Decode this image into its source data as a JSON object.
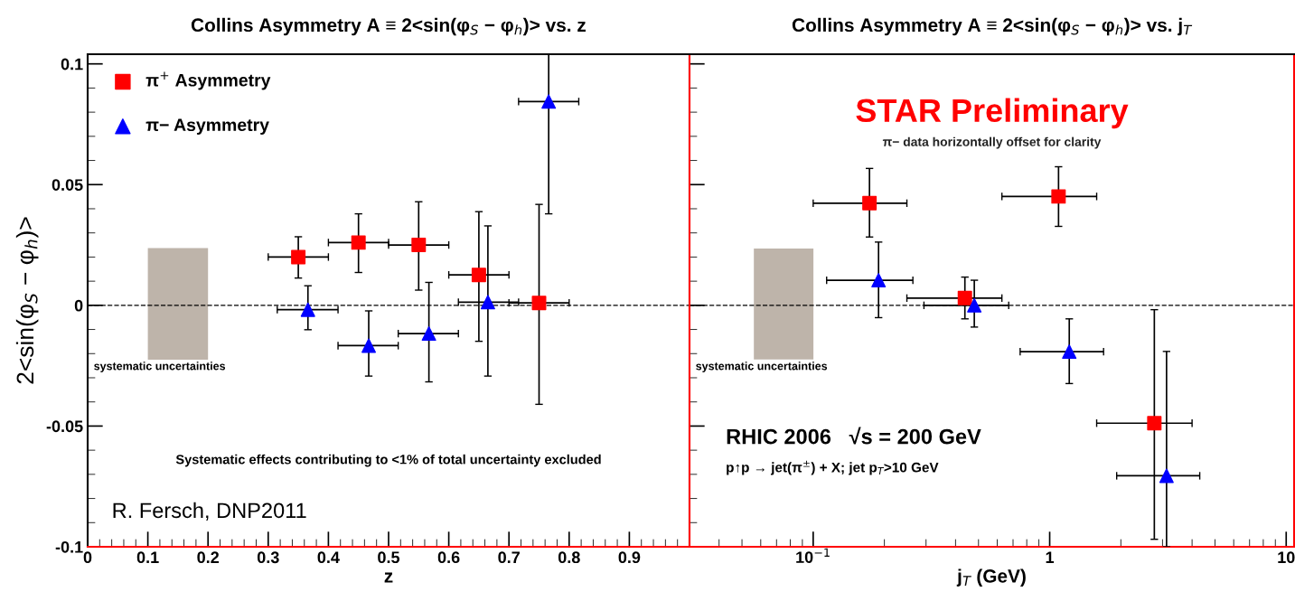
{
  "chart_data": [
    {
      "type": "scatter",
      "title": "Collins Asymmetry A ≡ 2<sin(φ$_{S}$ − φ$_{h}$)> vs. z",
      "xlabel": "z",
      "ylabel": "2<sin(φ$_{S}$ − φ$_{h}$)>",
      "xlim": [
        0,
        1
      ],
      "xticks": [
        0,
        0.1,
        0.2,
        0.3,
        0.4,
        0.5,
        0.6,
        0.7,
        0.8,
        0.9
      ],
      "ylim": [
        -0.1,
        0.104
      ],
      "yticks": [
        -0.1,
        -0.05,
        0,
        0.05,
        0.1
      ],
      "legend": "top left",
      "grid": false,
      "series": [
        {
          "type": "bar",
          "color": "#beb4aa",
          "x": [
            0.15
          ],
          "base": [
            -0.0225
          ],
          "values": [
            0.0462
          ]
        },
        {
          "name": "π$^{+}$ Asymmetry",
          "color": "#ff0000",
          "marker": "square",
          "x": [
            0.35,
            0.45,
            0.55,
            0.65,
            0.75
          ],
          "values": [
            0.02,
            0.026,
            0.025,
            0.0126,
            0.001
          ],
          "errors": [
            [
              0.0113,
              0.0284
            ],
            [
              0.0136,
              0.0379
            ],
            [
              0.0063,
              0.0429
            ],
            [
              -0.0149,
              0.0388
            ],
            [
              -0.041,
              0.0418
            ]
          ],
          "xerrors": [
            [
              0.3,
              0.4
            ],
            [
              0.4,
              0.5
            ],
            [
              0.5,
              0.6
            ],
            [
              0.6,
              0.7
            ],
            [
              0.7,
              0.8
            ]
          ]
        },
        {
          "name": "π− Asymmetry",
          "color": "#0000ff",
          "marker": "triangle",
          "x": [
            0.366,
            0.467,
            0.567,
            0.665,
            0.766
          ],
          "values": [
            -0.0018,
            -0.0167,
            -0.0117,
            0.0013,
            0.0844
          ],
          "errors": [
            [
              -0.0101,
              0.0081
            ],
            [
              -0.0293,
              -0.0023
            ],
            [
              -0.0317,
              0.0095
            ],
            [
              -0.0293,
              0.0329
            ],
            [
              0.0379,
              0.104
            ]
          ],
          "xerrors": [
            [
              0.315,
              0.416
            ],
            [
              0.416,
              0.516
            ],
            [
              0.516,
              0.616
            ],
            [
              0.616,
              0.716
            ],
            [
              0.716,
              0.816
            ]
          ]
        }
      ],
      "ref_lines": [
        {
          "axis": "y",
          "value": 0,
          "line_style": "dashed",
          "color": "#000000"
        }
      ],
      "annotations": [
        "systematic uncertainties",
        "Systematic effects contributing to <1% of total uncertainty excluded",
        "R. Fersch, DNP2011"
      ]
    },
    {
      "type": "scatter",
      "title": "Collins Asymmetry A ≡ 2<sin(φ$_{S}$ − φ$_{h}$)> vs. j$_{T}$",
      "xlabel": "j$_{T}$ (GeV)",
      "log": "x",
      "xlim": [
        0.03,
        10.8
      ],
      "xticks": [
        {
          "value": 0.1,
          "label": "10$^{−1}$"
        },
        1,
        10
      ],
      "ylim": [
        -0.1,
        0.104
      ],
      "yticks": [
        -0.1,
        -0.05,
        0,
        0.05,
        0.1
      ],
      "tick_labels": "x",
      "grid": false,
      "series": [
        {
          "type": "bar",
          "color": "#beb4aa",
          "x": [
            0.075
          ],
          "base": [
            -0.0224
          ],
          "values": [
            0.0459
          ]
        },
        {
          "color": "#ff0000",
          "marker": "square",
          "x": [
            0.173,
            0.438,
            1.09,
            2.77
          ],
          "values": [
            0.0423,
            0.003,
            0.0451,
            -0.0488
          ],
          "errors": [
            [
              0.0283,
              0.0567
            ],
            [
              -0.0056,
              0.0117
            ],
            [
              0.0327,
              0.0574
            ],
            [
              -0.0969,
              -0.0018
            ]
          ],
          "xerrors": [
            [
              0.1,
              0.249
            ],
            [
              0.249,
              0.628
            ],
            [
              0.628,
              1.58
            ],
            [
              1.58,
              4.0
            ]
          ]
        },
        {
          "color": "#0000ff",
          "marker": "triangle",
          "x": [
            0.189,
            0.48,
            1.21,
            3.12
          ],
          "values": [
            0.0104,
            0.0,
            -0.0192,
            -0.0706
          ],
          "errors": [
            [
              -0.0051,
              0.0262
            ],
            [
              -0.009,
              0.0104
            ],
            [
              -0.0324,
              -0.0056
            ],
            [
              -0.1,
              -0.0191
            ]
          ],
          "xerrors": [
            [
              0.114,
              0.264
            ],
            [
              0.294,
              0.671
            ],
            [
              0.75,
              1.69
            ],
            [
              1.92,
              4.31
            ]
          ]
        }
      ],
      "ref_lines": [
        {
          "axis": "y",
          "value": 0,
          "line_style": "dashed",
          "color": "#000000"
        }
      ],
      "annotations": [
        "STAR Preliminary",
        "π− data horizontally offset for clarity",
        "systematic uncertainties",
        "RHIC 2006   √s = 200 GeV",
        "p↑p → jet(π$^{±}$) + X; jet p$_{T}$>10 GeV"
      ]
    }
  ]
}
